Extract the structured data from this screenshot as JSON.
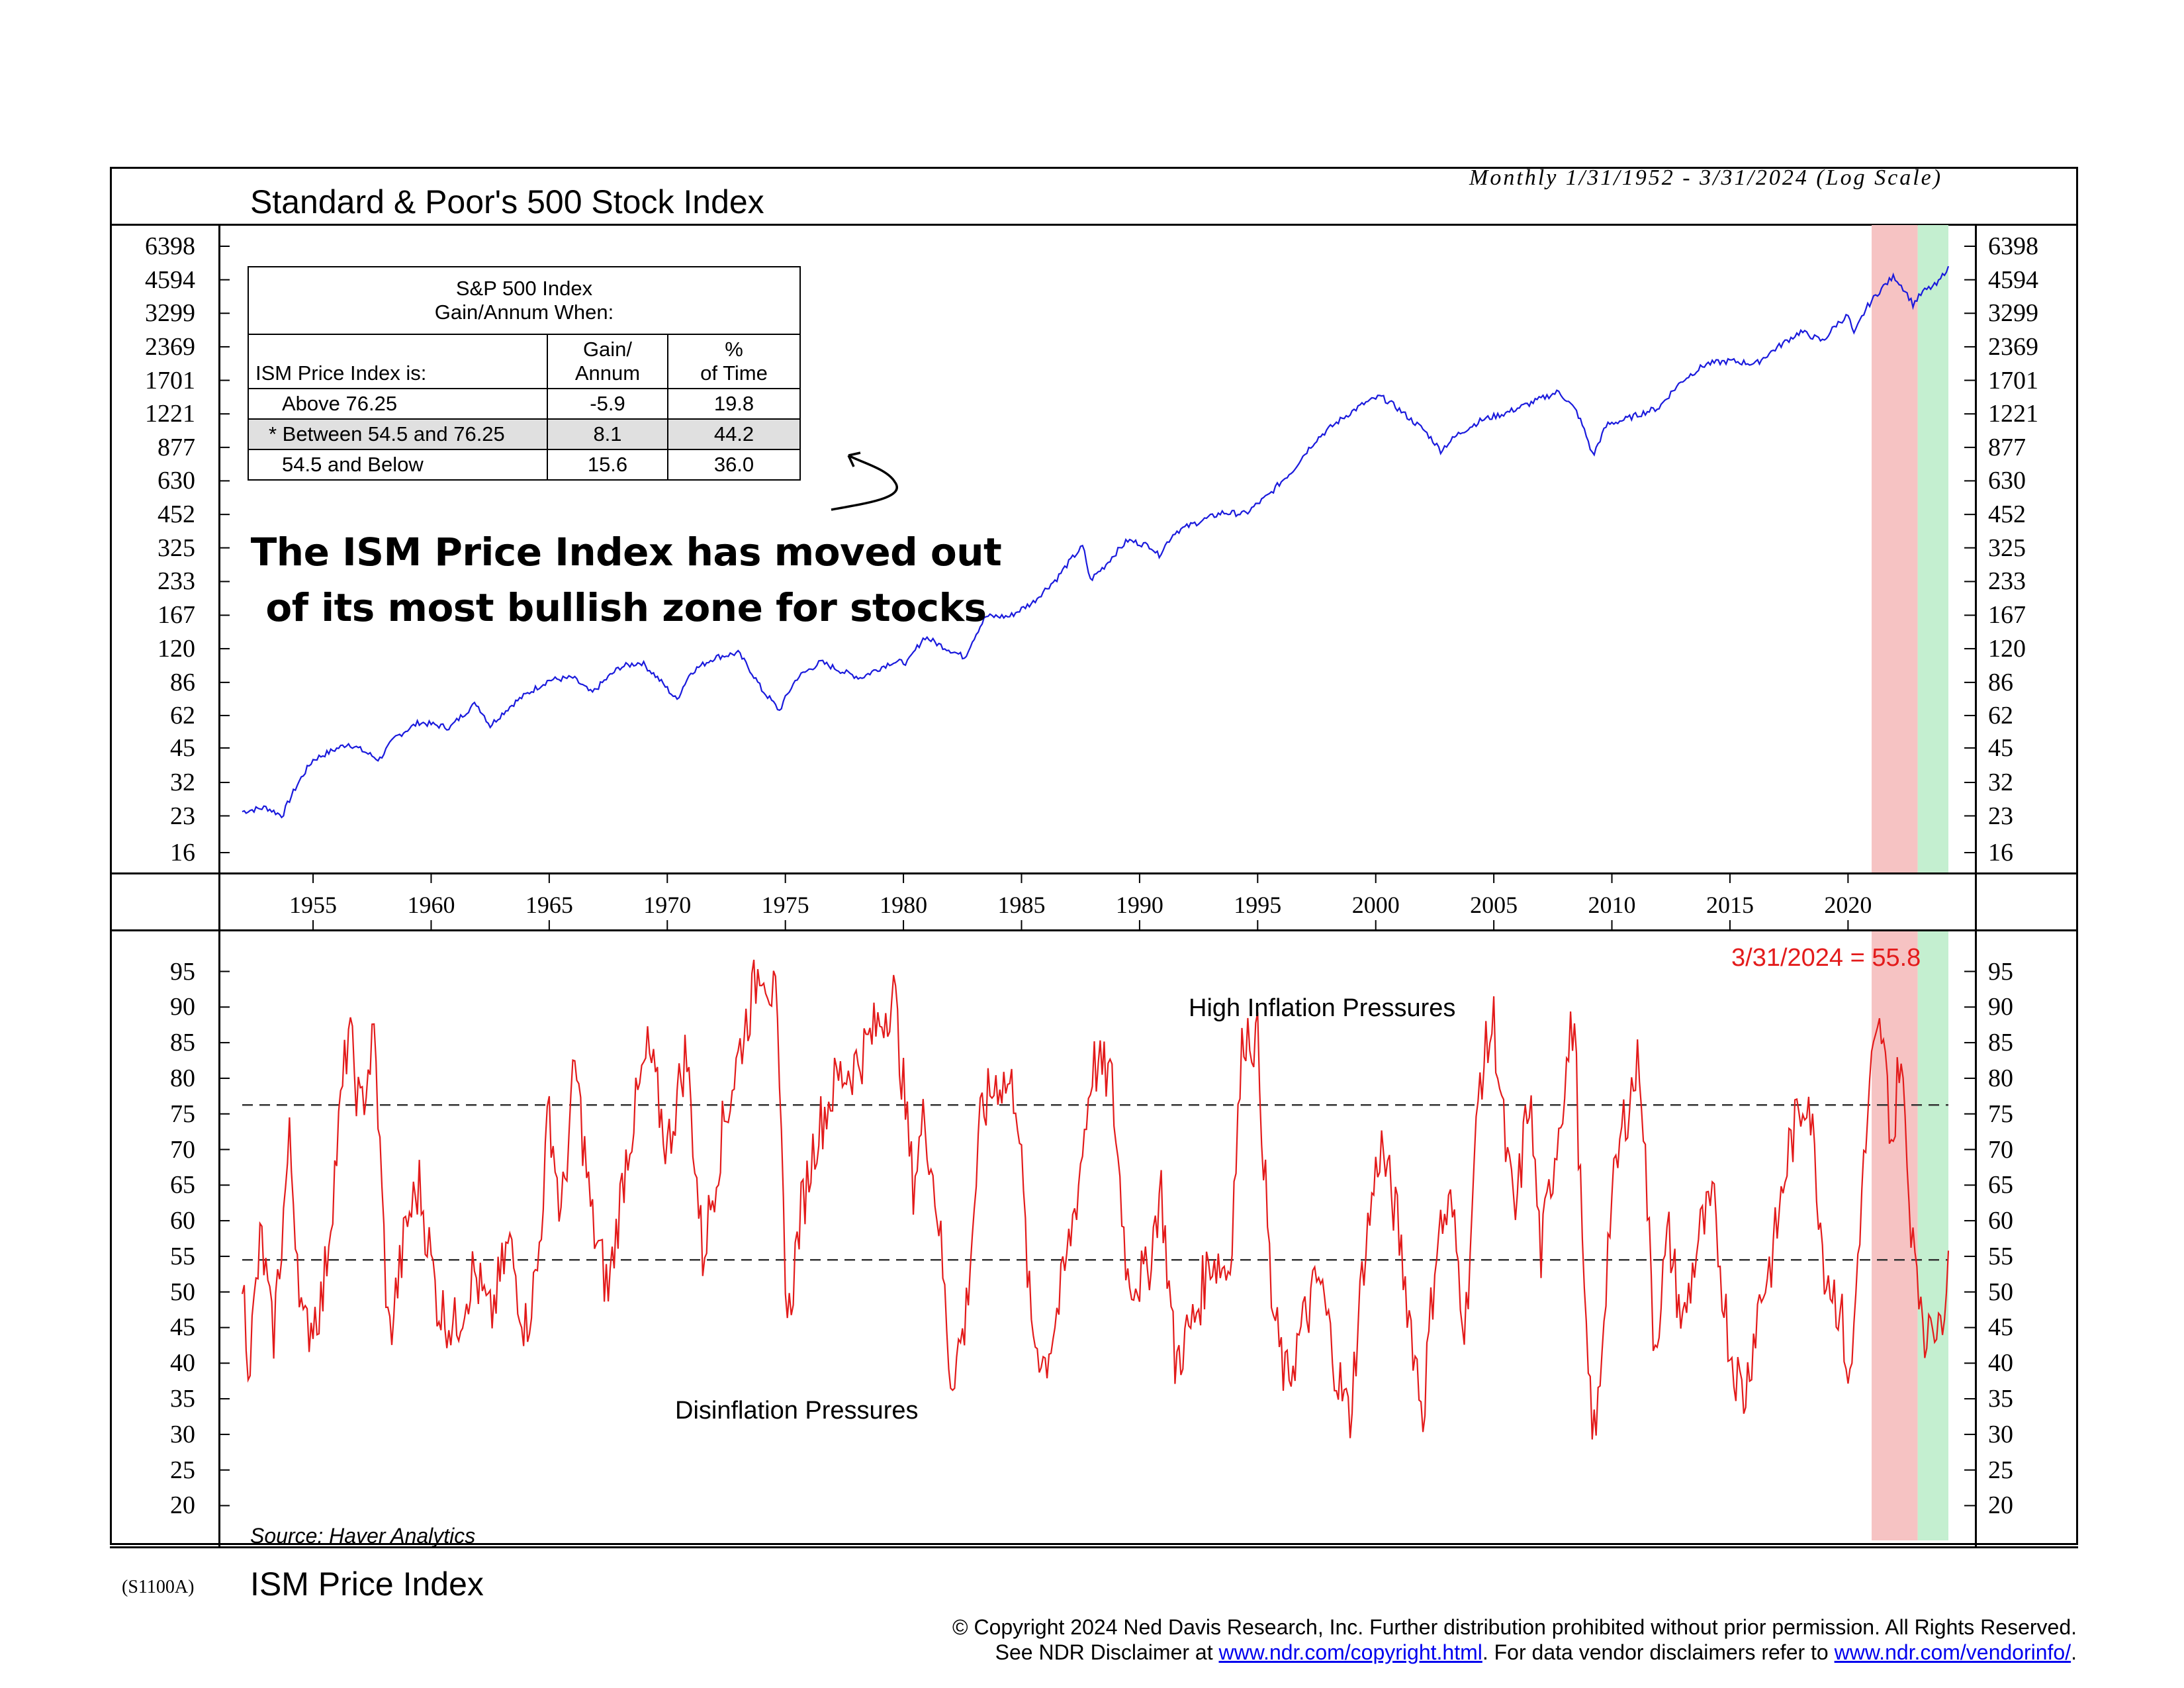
{
  "header": {
    "top_title": "Standard & Poor's 500 Stock Index",
    "subtitle": "Monthly 1/31/1952 - 3/31/2024 (Log Scale)",
    "bottom_title": "ISM Price Index",
    "chart_code": "(S1100A)"
  },
  "stats_table": {
    "heading_line1": "S&P 500 Index",
    "heading_line2": "Gain/Annum When:",
    "row_label_header": "ISM Price Index is:",
    "col1_header_line1": "Gain/",
    "col1_header_line2": "Annum",
    "col2_header_line1": "%",
    "col2_header_line2": "of Time",
    "rows": [
      {
        "label": "Above 76.25",
        "gain": "-5.9",
        "pct": "19.8"
      },
      {
        "label": "* Between 54.5 and 76.25",
        "gain": "8.1",
        "pct": "44.2"
      },
      {
        "label": "54.5 and Below",
        "gain": "15.6",
        "pct": "36.0"
      }
    ]
  },
  "callout": {
    "line1": "The ISM Price Index has moved out",
    "line2": "of its most bullish zone for stocks"
  },
  "annotations": {
    "latest": "3/31/2024 = 55.8",
    "high": "High Inflation Pressures",
    "low": "Disinflation Pressures",
    "source": "Source: Haver Analytics"
  },
  "footer": {
    "line1": "© Copyright 2024 Ned Davis Research, Inc.  Further distribution prohibited without prior permission.  All Rights Reserved.",
    "line2_a": "See NDR Disclaimer at ",
    "link1": "www.ndr.com/copyright.html",
    "line2_b": ". For data vendor disclaimers refer to ",
    "link2": "www.ndr.com/vendorinfo/",
    "line2_c": "."
  },
  "colors": {
    "sp500_line": "#1a1adc",
    "ism_line": "#e31b1b",
    "shade_red": "#f6c3c3",
    "shade_green": "#c4efd0",
    "latest_text": "#e31b1b"
  },
  "chart_data": [
    {
      "type": "line",
      "title": "Standard & Poor's 500 Stock Index",
      "y_scale": "log",
      "x_ticks": [
        "1955",
        "1960",
        "1965",
        "1970",
        "1975",
        "1980",
        "1985",
        "1990",
        "1995",
        "2000",
        "2005",
        "2010",
        "2015",
        "2020"
      ],
      "y_ticks": [
        16,
        23,
        32,
        45,
        62,
        86,
        120,
        167,
        233,
        325,
        452,
        630,
        877,
        1221,
        1701,
        2369,
        3299,
        4594,
        6398
      ],
      "xlim": [
        1952.0,
        2024.25
      ],
      "ylim": [
        16,
        6398
      ],
      "shaded_periods": [
        {
          "start": 2021.0,
          "end": 2022.95,
          "color": "red"
        },
        {
          "start": 2022.95,
          "end": 2024.25,
          "color": "green"
        }
      ],
      "series": [
        {
          "x": [
            1952.0,
            1953.0,
            1953.7,
            1955.0,
            1956.5,
            1957.8,
            1958.5,
            1959.5,
            1960.8,
            1961.9,
            1962.5,
            1963.5,
            1965.0,
            1966.0,
            1966.8,
            1968.0,
            1968.9,
            1970.4,
            1971.0,
            1972.0,
            1973.0,
            1974.0,
            1974.75,
            1975.5,
            1976.5,
            1977.5,
            1978.2,
            1979.5,
            1980.2,
            1980.9,
            1981.5,
            1982.6,
            1983.5,
            1984.5,
            1985.5,
            1986.5,
            1987.6,
            1987.9,
            1988.5,
            1989.5,
            1990.5,
            1990.8,
            1991.5,
            1992.5,
            1993.5,
            1994.5,
            1995.5,
            1996.5,
            1997.5,
            1998.5,
            1999.5,
            2000.2,
            2000.8,
            2001.5,
            2002.0,
            2002.75,
            2003.5,
            2004.5,
            2005.5,
            2006.5,
            2007.75,
            2008.5,
            2009.2,
            2009.8,
            2010.5,
            2011.5,
            2012.0,
            2013.0,
            2014.0,
            2015.0,
            2016.1,
            2017.0,
            2018.0,
            2018.95,
            2019.5,
            2020.0,
            2020.25,
            2020.8,
            2021.5,
            2021.95,
            2022.4,
            2022.75,
            2023.2,
            2023.8,
            2024.25
          ],
          "y": [
            24,
            25,
            23,
            40,
            47,
            40,
            50,
            58,
            55,
            70,
            56,
            70,
            88,
            90,
            77,
            100,
            105,
            72,
            95,
            110,
            115,
            80,
            65,
            90,
            105,
            95,
            90,
            105,
            105,
            135,
            125,
            110,
            165,
            165,
            190,
            240,
            330,
            235,
            270,
            350,
            330,
            300,
            380,
            420,
            460,
            455,
            550,
            700,
            950,
            1150,
            1350,
            1450,
            1320,
            1150,
            1050,
            850,
            1000,
            1150,
            1230,
            1350,
            1520,
            1250,
            800,
            1100,
            1150,
            1250,
            1300,
            1700,
            2000,
            2060,
            2000,
            2350,
            2750,
            2500,
            2950,
            3230,
            2650,
            3500,
            4300,
            4750,
            4150,
            3600,
            4100,
            4400,
            5250
          ]
        }
      ]
    },
    {
      "type": "line",
      "title": "ISM Price Index",
      "x_ticks": [
        "1955",
        "1960",
        "1965",
        "1970",
        "1975",
        "1980",
        "1985",
        "1990",
        "1995",
        "2000",
        "2005",
        "2010",
        "2015",
        "2020"
      ],
      "y_ticks": [
        20,
        25,
        30,
        35,
        40,
        45,
        50,
        55,
        60,
        65,
        70,
        75,
        80,
        85,
        90,
        95
      ],
      "xlim": [
        1952.0,
        2024.25
      ],
      "ylim": [
        18,
        97
      ],
      "reference_lines": [
        76.25,
        54.5
      ],
      "latest": {
        "date": "3/31/2024",
        "value": 55.8
      },
      "series": [
        {
          "x": [
            1952.0,
            1952.3,
            1952.8,
            1953.3,
            1954.0,
            1954.6,
            1955.4,
            1956.5,
            1957.0,
            1957.6,
            1958.2,
            1959.0,
            1959.5,
            1960.3,
            1961.0,
            1961.8,
            1962.5,
            1963.3,
            1964.0,
            1964.5,
            1965.0,
            1965.5,
            1966.1,
            1966.8,
            1967.5,
            1968.3,
            1969.2,
            1970.0,
            1970.8,
            1971.5,
            1972.3,
            1973.2,
            1974.0,
            1974.6,
            1975.1,
            1975.6,
            1976.3,
            1977.2,
            1978.0,
            1979.0,
            1979.6,
            1980.4,
            1980.9,
            1981.5,
            1982.0,
            1982.6,
            1983.3,
            1984.0,
            1984.8,
            1985.4,
            1986.0,
            1986.7,
            1987.4,
            1988.0,
            1988.8,
            1989.5,
            1990.3,
            1990.9,
            1991.5,
            1992.3,
            1993.0,
            1993.8,
            1994.4,
            1995.0,
            1995.6,
            1996.2,
            1996.9,
            1997.6,
            1998.4,
            1998.9,
            1999.5,
            2000.2,
            2000.9,
            2001.5,
            2002.0,
            2002.6,
            2003.2,
            2003.8,
            2004.4,
            2005.0,
            2005.5,
            2005.9,
            2006.5,
            2007.0,
            2007.6,
            2008.4,
            2008.9,
            2009.3,
            2009.9,
            2010.5,
            2011.2,
            2011.8,
            2012.4,
            2013.0,
            2013.7,
            2014.3,
            2015.0,
            2015.6,
            2016.2,
            2016.8,
            2017.5,
            2018.3,
            2019.0,
            2019.7,
            2020.1,
            2020.5,
            2021.0,
            2021.4,
            2021.9,
            2022.2,
            2022.6,
            2022.95,
            2023.2,
            2023.5,
            2023.8,
            2024.0,
            2024.25
          ],
          "y": [
            52,
            40,
            58,
            43,
            71,
            44,
            49,
            87,
            75,
            86,
            43,
            60,
            65,
            48,
            45,
            53,
            46,
            57,
            45,
            53,
            76,
            60,
            82,
            60,
            50,
            70,
            84,
            70,
            84,
            55,
            72,
            86,
            97,
            90,
            45,
            60,
            72,
            80,
            82,
            88,
            92,
            65,
            75,
            60,
            38,
            45,
            75,
            80,
            78,
            45,
            40,
            50,
            65,
            82,
            80,
            52,
            52,
            65,
            40,
            46,
            55,
            53,
            87,
            85,
            48,
            37,
            45,
            52,
            38,
            32,
            55,
            71,
            60,
            45,
            33,
            58,
            62,
            45,
            80,
            88,
            70,
            60,
            78,
            55,
            70,
            89,
            42,
            28,
            60,
            74,
            83,
            42,
            58,
            45,
            58,
            62,
            42,
            35,
            48,
            55,
            70,
            79,
            54,
            47,
            36,
            60,
            81,
            87,
            70,
            85,
            62,
            55,
            40,
            50,
            42,
            48,
            55.8
          ]
        }
      ]
    }
  ]
}
